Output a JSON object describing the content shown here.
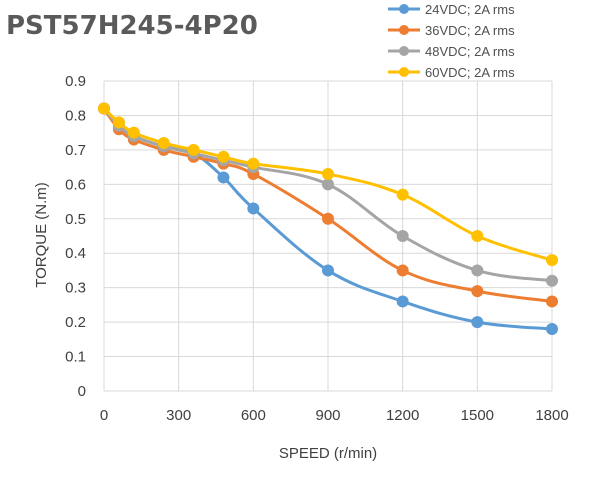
{
  "chart_data": {
    "type": "line",
    "title": "PST57H245-4P20",
    "xlabel": "SPEED (r/min)",
    "ylabel": "TORQUE (N.m)",
    "xlim": [
      0,
      1800
    ],
    "ylim": [
      0,
      0.9
    ],
    "x_ticks": [
      "0",
      "300",
      "600",
      "900",
      "1200",
      "1500",
      "1800"
    ],
    "y_ticks": [
      "0",
      "0.1",
      "0.2",
      "0.3",
      "0.4",
      "0.5",
      "0.6",
      "0.7",
      "0.8",
      "0.9"
    ],
    "grid": true,
    "legend_position": "top-right",
    "series": [
      {
        "name": "24VDC; 2A rms",
        "color": "#5b9bd5",
        "x": [
          0,
          60,
          120,
          240,
          360,
          480,
          600,
          900,
          1200,
          1500,
          1800
        ],
        "y": [
          0.82,
          0.77,
          0.74,
          0.71,
          0.69,
          0.62,
          0.53,
          0.35,
          0.26,
          0.2,
          0.18
        ]
      },
      {
        "name": "36VDC; 2A rms",
        "color": "#ed7d31",
        "x": [
          0,
          60,
          120,
          240,
          360,
          480,
          600,
          900,
          1200,
          1500,
          1800
        ],
        "y": [
          0.82,
          0.76,
          0.73,
          0.7,
          0.68,
          0.66,
          0.63,
          0.5,
          0.35,
          0.29,
          0.26
        ]
      },
      {
        "name": "48VDC; 2A rms",
        "color": "#a5a5a5",
        "x": [
          0,
          60,
          120,
          240,
          360,
          480,
          600,
          900,
          1200,
          1500,
          1800
        ],
        "y": [
          0.82,
          0.77,
          0.74,
          0.71,
          0.69,
          0.67,
          0.65,
          0.6,
          0.45,
          0.35,
          0.32
        ]
      },
      {
        "name": "60VDC; 2A rms",
        "color": "#ffc000",
        "x": [
          0,
          60,
          120,
          240,
          360,
          480,
          600,
          900,
          1200,
          1500,
          1800
        ],
        "y": [
          0.82,
          0.78,
          0.75,
          0.72,
          0.7,
          0.68,
          0.66,
          0.63,
          0.57,
          0.45,
          0.38
        ]
      }
    ]
  }
}
